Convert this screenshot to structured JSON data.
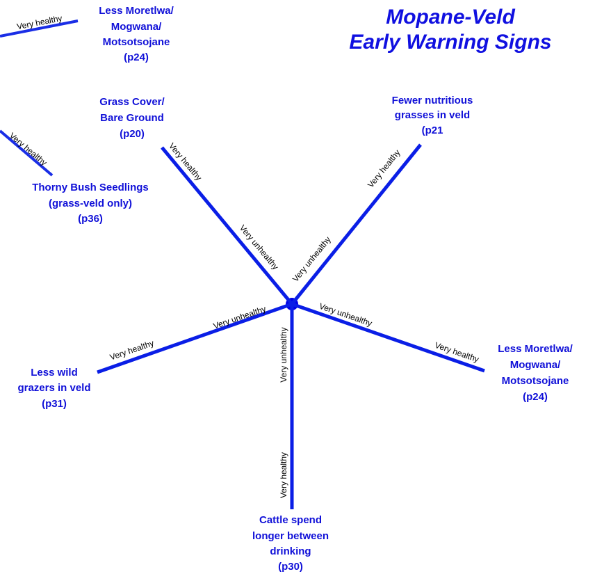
{
  "title": [
    "Mopane-Veld",
    "Early Warning Signs"
  ],
  "legend": [
    {
      "line_label": "Very healthy",
      "label": [
        "Less Moretlwa/",
        "Mogwana/",
        "Motsotsojane",
        "(p24)"
      ]
    },
    {
      "line_label": "Very healthy",
      "label": [
        "Thorny Bush Seedlings",
        "(grass-veld only)",
        "(p36)"
      ]
    }
  ],
  "spokes": [
    {
      "label": [
        "Grass Cover/",
        "Bare Ground",
        "(p20)"
      ],
      "healthy": "Very healthy",
      "unhealthy": "Very unhealthy"
    },
    {
      "label": [
        "Fewer nutritious",
        "grasses in veld",
        "(p21"
      ],
      "healthy": "Very healthy",
      "unhealthy": "Very unhealthy"
    },
    {
      "label": [
        "Less Moretlwa/",
        "Mogwana/",
        "Motsotsojane",
        "(p24)"
      ],
      "healthy": "Very healthy",
      "unhealthy": "Very unhealthy"
    },
    {
      "label": [
        "Cattle spend",
        "longer between",
        "drinking",
        "(p30)"
      ],
      "healthy": "Very healthy",
      "unhealthy": "Very unhealthy"
    },
    {
      "label": [
        "Less wild",
        "grazers in veld",
        "(p31)"
      ],
      "healthy": "Very healthy",
      "unhealthy": "Very unhealthy"
    }
  ]
}
